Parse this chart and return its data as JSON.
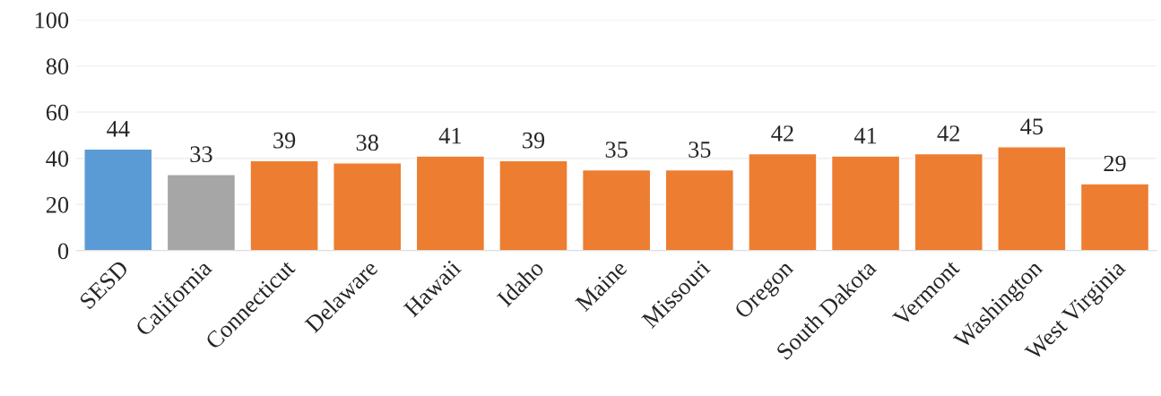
{
  "chart_data": {
    "type": "bar",
    "categories": [
      "SESD",
      "California",
      "Connecticut",
      "Delaware",
      "Hawaii",
      "Idaho",
      "Maine",
      "Missouri",
      "Oregon",
      "South Dakota",
      "Vermont",
      "Washington",
      "West Virginia"
    ],
    "values": [
      44,
      33,
      39,
      38,
      41,
      39,
      35,
      35,
      42,
      41,
      42,
      45,
      29
    ],
    "colors": [
      "#5b9bd5",
      "#a6a6a6",
      "#ed7d31",
      "#ed7d31",
      "#ed7d31",
      "#ed7d31",
      "#ed7d31",
      "#ed7d31",
      "#ed7d31",
      "#ed7d31",
      "#ed7d31",
      "#ed7d31",
      "#ed7d31"
    ],
    "ylim": [
      0,
      100
    ],
    "yticks": [
      0,
      20,
      40,
      60,
      80,
      100
    ],
    "grid": "y",
    "data_labels": true
  }
}
